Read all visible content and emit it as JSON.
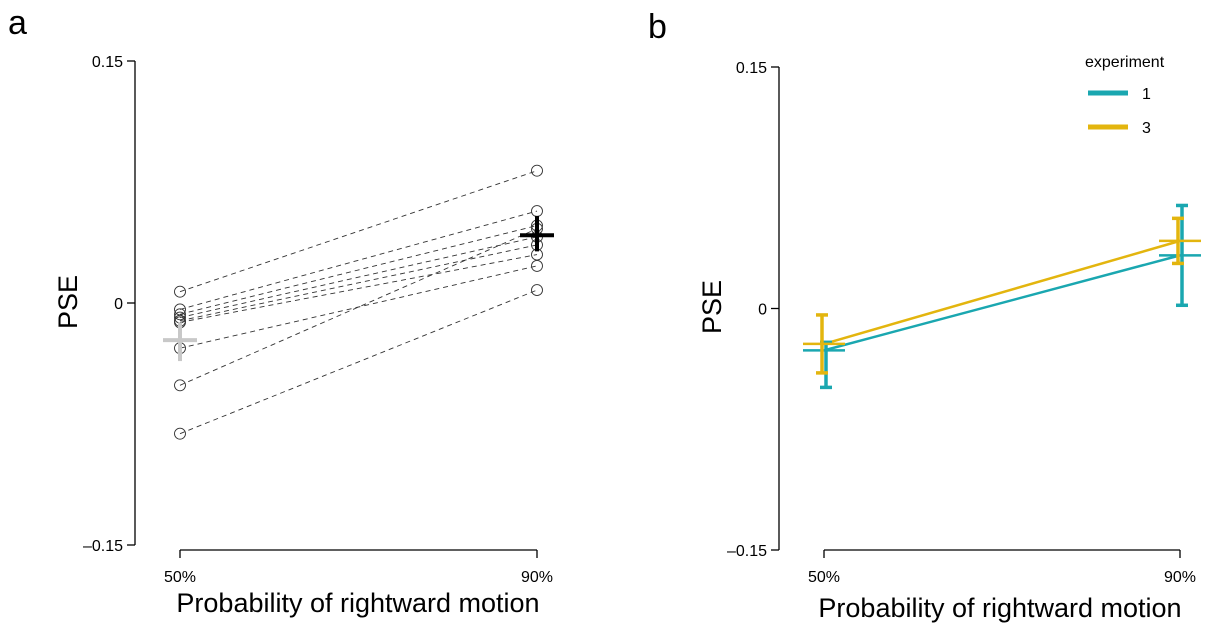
{
  "chart_data": [
    {
      "type": "line",
      "panel_label": "a",
      "xlabel": "Probability of rightward motion",
      "ylabel": "PSE",
      "categories": [
        "50%",
        "90%"
      ],
      "yticks": [
        "0.15",
        "0",
        "–0.15"
      ],
      "ytick_values": [
        0.15,
        0,
        -0.15
      ],
      "ylim": [
        -0.15,
        0.15
      ],
      "grid": false,
      "participants": [
        {
          "values": [
            0.007,
            0.082
          ]
        },
        {
          "values": [
            -0.004,
            0.057
          ]
        },
        {
          "values": [
            -0.007,
            0.048
          ]
        },
        {
          "values": [
            -0.009,
            0.041
          ]
        },
        {
          "values": [
            -0.011,
            0.036
          ]
        },
        {
          "values": [
            -0.012,
            0.03
          ]
        },
        {
          "values": [
            -0.028,
            0.023
          ]
        },
        {
          "values": [
            -0.051,
            0.046
          ]
        },
        {
          "values": [
            -0.081,
            0.008
          ]
        }
      ],
      "means": [
        {
          "category": "50%",
          "value": -0.023,
          "ci_low": -0.036,
          "ci_high": -0.012,
          "color": "#c8c8c8"
        },
        {
          "category": "90%",
          "value": 0.042,
          "ci_low": 0.032,
          "ci_high": 0.054,
          "color": "#000000"
        }
      ]
    },
    {
      "type": "line",
      "panel_label": "b",
      "xlabel": "Probability of rightward motion",
      "ylabel": "PSE",
      "categories": [
        "50%",
        "90%"
      ],
      "yticks": [
        "0.15",
        "0",
        "–0.15"
      ],
      "ytick_values": [
        0.15,
        0,
        -0.15
      ],
      "ylim": [
        -0.15,
        0.15
      ],
      "grid": false,
      "legend_title": "experiment",
      "legend_position": "top-right",
      "series": [
        {
          "name": "1",
          "color": "#1aa7b0",
          "values": [
            -0.026,
            0.033
          ],
          "err_low": [
            -0.049,
            0.002
          ],
          "err_high": [
            -0.021,
            0.064
          ]
        },
        {
          "name": "3",
          "color": "#e3b50e",
          "values": [
            -0.022,
            0.042
          ],
          "err_low": [
            -0.04,
            0.028
          ],
          "err_high": [
            -0.004,
            0.056
          ]
        }
      ]
    }
  ]
}
